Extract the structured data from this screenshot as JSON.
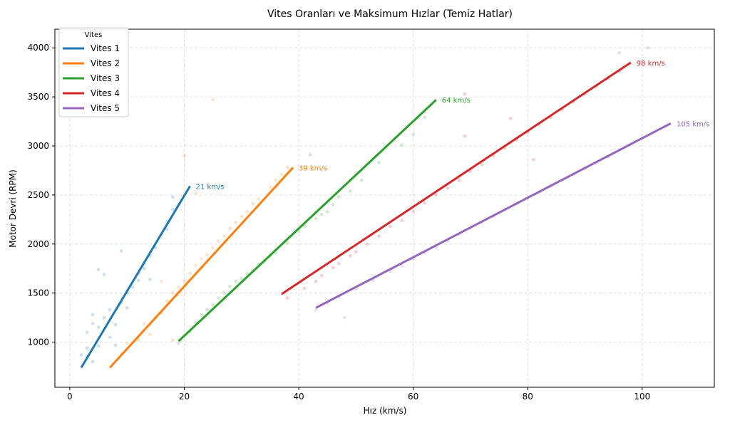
{
  "chart_data": {
    "type": "line",
    "title": "Vites Oranları ve Maksimum Hızlar (Temiz Hatlar)",
    "xlabel": "Hız (km/s)",
    "ylabel": "Motor Devri (RPM)",
    "xlim": [
      -2.6,
      112.6
    ],
    "ylim": [
      540,
      4190
    ],
    "xticks": [
      0,
      20,
      40,
      60,
      80,
      100
    ],
    "yticks": [
      1000,
      1500,
      2000,
      2500,
      3000,
      3500,
      4000
    ],
    "grid": true,
    "legend": {
      "title": "Vites",
      "placement": "top-left"
    },
    "series": [
      {
        "name": "Vites 1",
        "color": "#1f77b4",
        "line": [
          [
            2,
            740
          ],
          [
            21,
            2590
          ]
        ],
        "end_label": "21 km/s"
      },
      {
        "name": "Vites 2",
        "color": "#ff7f0e",
        "line": [
          [
            7,
            740
          ],
          [
            39,
            2780
          ]
        ],
        "end_label": "39 km/s"
      },
      {
        "name": "Vites 3",
        "color": "#2ca02c",
        "line": [
          [
            19,
            1010
          ],
          [
            64,
            3470
          ]
        ],
        "end_label": "64 km/s"
      },
      {
        "name": "Vites 4",
        "color": "#d62728",
        "line": [
          [
            37,
            1490
          ],
          [
            98,
            3850
          ]
        ],
        "end_label": "98 km/s"
      },
      {
        "name": "Vites 5",
        "color": "#9467bd",
        "line": [
          [
            43,
            1350
          ],
          [
            105,
            3230
          ]
        ],
        "end_label": "105 km/s"
      }
    ],
    "scatter": [
      {
        "series": "Vites 1",
        "points": [
          [
            2,
            870
          ],
          [
            3,
            940
          ],
          [
            3,
            1100
          ],
          [
            4,
            800
          ],
          [
            4,
            1280
          ],
          [
            5,
            960
          ],
          [
            5,
            1150
          ],
          [
            6,
            1250
          ],
          [
            7,
            1050
          ],
          [
            7,
            1330
          ],
          [
            8,
            1180
          ],
          [
            9,
            1400
          ],
          [
            10,
            1500
          ],
          [
            10,
            1350
          ],
          [
            11,
            1560
          ],
          [
            12,
            1700
          ],
          [
            12,
            1630
          ],
          [
            13,
            1800
          ],
          [
            13,
            1750
          ],
          [
            14,
            1880
          ],
          [
            15,
            1960
          ],
          [
            16,
            2100
          ],
          [
            17,
            2230
          ],
          [
            17,
            2150
          ],
          [
            18,
            2350
          ],
          [
            18,
            2480
          ],
          [
            5,
            1740
          ],
          [
            6,
            1690
          ],
          [
            9,
            1930
          ],
          [
            14,
            1640
          ],
          [
            3,
            850
          ],
          [
            4,
            1190
          ],
          [
            8,
            970
          ]
        ]
      },
      {
        "series": "Vites 2",
        "points": [
          [
            9,
            880
          ],
          [
            10,
            990
          ],
          [
            12,
            1020
          ],
          [
            13,
            1190
          ],
          [
            14,
            1080
          ],
          [
            15,
            1250
          ],
          [
            16,
            1300
          ],
          [
            17,
            1420
          ],
          [
            18,
            1500
          ],
          [
            19,
            1560
          ],
          [
            20,
            1620
          ],
          [
            21,
            1700
          ],
          [
            22,
            1780
          ],
          [
            23,
            1850
          ],
          [
            24,
            1890
          ],
          [
            25,
            1960
          ],
          [
            26,
            2030
          ],
          [
            27,
            2080
          ],
          [
            28,
            2160
          ],
          [
            29,
            2220
          ],
          [
            30,
            2280
          ],
          [
            31,
            2330
          ],
          [
            32,
            2410
          ],
          [
            33,
            2460
          ],
          [
            35,
            2580
          ],
          [
            36,
            2650
          ],
          [
            37,
            2710
          ],
          [
            38,
            2780
          ],
          [
            25,
            3470
          ],
          [
            20,
            2900
          ],
          [
            22,
            2520
          ],
          [
            16,
            1620
          ],
          [
            18,
            1020
          ]
        ]
      },
      {
        "series": "Vites 3",
        "points": [
          [
            19,
            990
          ],
          [
            21,
            1110
          ],
          [
            22,
            1200
          ],
          [
            23,
            1280
          ],
          [
            24,
            1330
          ],
          [
            25,
            1380
          ],
          [
            26,
            1450
          ],
          [
            27,
            1500
          ],
          [
            28,
            1570
          ],
          [
            29,
            1620
          ],
          [
            30,
            1650
          ],
          [
            31,
            1700
          ],
          [
            32,
            1730
          ],
          [
            33,
            1790
          ],
          [
            34,
            1830
          ],
          [
            35,
            1880
          ],
          [
            36,
            1910
          ],
          [
            38,
            2010
          ],
          [
            40,
            2130
          ],
          [
            41,
            2180
          ],
          [
            43,
            2260
          ],
          [
            44,
            2300
          ],
          [
            45,
            2330
          ],
          [
            46,
            2400
          ],
          [
            47,
            2480
          ],
          [
            49,
            2540
          ],
          [
            51,
            2650
          ],
          [
            54,
            2830
          ],
          [
            58,
            3010
          ],
          [
            60,
            3120
          ],
          [
            62,
            3290
          ],
          [
            42,
            2910
          ]
        ]
      },
      {
        "series": "Vites 4",
        "points": [
          [
            38,
            1450
          ],
          [
            41,
            1550
          ],
          [
            43,
            1620
          ],
          [
            44,
            1680
          ],
          [
            46,
            1760
          ],
          [
            47,
            1800
          ],
          [
            49,
            1880
          ],
          [
            50,
            1920
          ],
          [
            52,
            2000
          ],
          [
            54,
            2080
          ],
          [
            56,
            2180
          ],
          [
            58,
            2240
          ],
          [
            60,
            2330
          ],
          [
            62,
            2420
          ],
          [
            64,
            2500
          ],
          [
            66,
            2570
          ],
          [
            68,
            2650
          ],
          [
            70,
            2740
          ],
          [
            72,
            2810
          ],
          [
            74,
            2900
          ],
          [
            76,
            2980
          ],
          [
            78,
            3060
          ],
          [
            80,
            3140
          ],
          [
            82,
            3220
          ],
          [
            84,
            3290
          ],
          [
            86,
            3370
          ],
          [
            88,
            3450
          ],
          [
            90,
            3530
          ],
          [
            92,
            3610
          ],
          [
            94,
            3690
          ],
          [
            96,
            3760
          ],
          [
            69,
            3530
          ],
          [
            77,
            3280
          ],
          [
            69,
            3100
          ],
          [
            81,
            2860
          ]
        ]
      },
      {
        "series": "Vites 5",
        "points": [
          [
            43,
            1330
          ],
          [
            45,
            1400
          ],
          [
            47,
            1460
          ],
          [
            50,
            1540
          ],
          [
            53,
            1630
          ],
          [
            56,
            1720
          ],
          [
            58,
            1780
          ],
          [
            60,
            1850
          ],
          [
            62,
            1910
          ],
          [
            64,
            1970
          ],
          [
            66,
            2030
          ],
          [
            68,
            2100
          ],
          [
            70,
            2160
          ],
          [
            72,
            2220
          ],
          [
            74,
            2280
          ],
          [
            75,
            2320
          ],
          [
            76,
            2350
          ],
          [
            78,
            2410
          ],
          [
            80,
            2470
          ],
          [
            82,
            2530
          ],
          [
            84,
            2590
          ],
          [
            86,
            2650
          ],
          [
            88,
            2710
          ],
          [
            90,
            2770
          ],
          [
            92,
            2830
          ],
          [
            94,
            2890
          ],
          [
            96,
            2960
          ],
          [
            98,
            3020
          ],
          [
            100,
            3080
          ],
          [
            102,
            3140
          ],
          [
            104,
            3200
          ],
          [
            96,
            3950
          ],
          [
            101,
            4000
          ],
          [
            48,
            1250
          ]
        ]
      }
    ]
  }
}
